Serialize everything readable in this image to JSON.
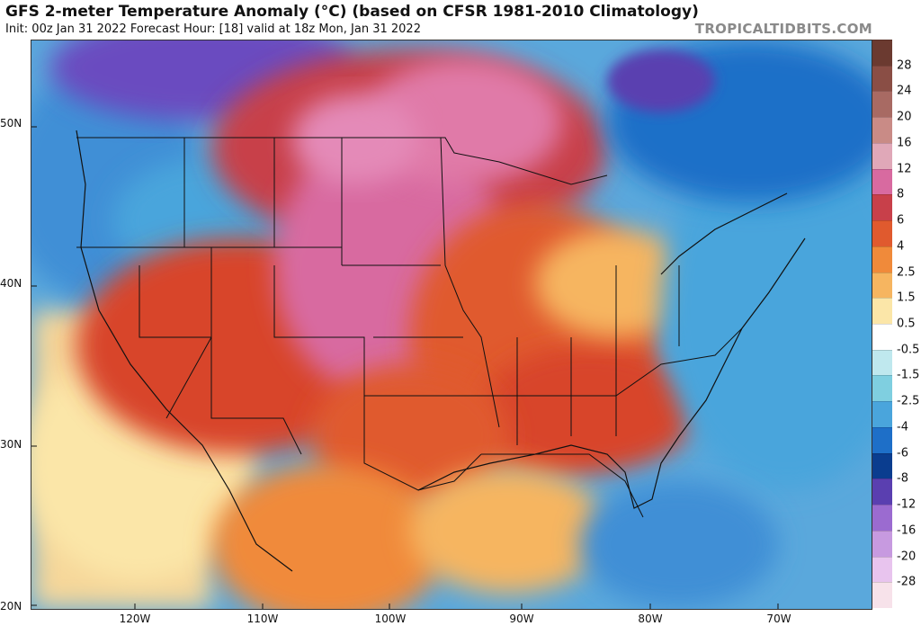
{
  "header": {
    "title": "GFS 2-meter Temperature Anomaly (°C) (based on CFSR 1981-2010 Climatology)",
    "subtitle": "Init: 00z Jan 31 2022   Forecast Hour: [18]   valid at 18z Mon, Jan 31 2022",
    "credit": "TROPICALTIDBITS.COM"
  },
  "axes": {
    "lat_ticks": [
      "50N",
      "40N",
      "30N",
      "20N"
    ],
    "lon_ticks": [
      "120W",
      "110W",
      "100W",
      "90W",
      "80W",
      "70W"
    ]
  },
  "colorbar": {
    "labels": [
      "28",
      "24",
      "20",
      "16",
      "12",
      "8",
      "6",
      "4",
      "2.5",
      "1.5",
      "0.5",
      "-0.5",
      "-1.5",
      "-2.5",
      "-4",
      "-6",
      "-8",
      "-12",
      "-16",
      "-20",
      "-28"
    ],
    "colors": [
      "#6b3a30",
      "#8a4e45",
      "#a86a63",
      "#c98b86",
      "#e0a8b8",
      "#d86aa0",
      "#c8404a",
      "#e05a2e",
      "#f08a3a",
      "#f6b560",
      "#fbe6a8",
      "#ffffff",
      "#bfe8ee",
      "#7fcfe0",
      "#4aa5dc",
      "#1e6fc8",
      "#0a3d8f",
      "#5a3fb0",
      "#9b6bd0",
      "#c79ae0",
      "#e8c4ee",
      "#f7e2ea"
    ]
  },
  "regions": [
    {
      "name": "Western US warm anomaly",
      "color": "#d8442a"
    },
    {
      "name": "Central Plains strong warm anomaly",
      "color": "#d86aa0"
    },
    {
      "name": "Canadian Prairies warm anomaly",
      "color": "#c8404a"
    },
    {
      "name": "Pacific Northwest cold anomaly",
      "color": "#4aa5dc"
    },
    {
      "name": "Eastern Canada cold anomaly",
      "color": "#1e6fc8"
    },
    {
      "name": "Atlantic Ocean cool anomaly",
      "color": "#4aa5dc"
    },
    {
      "name": "Southeast US warm anomaly",
      "color": "#e05a2e"
    },
    {
      "name": "Gulf of Mexico warm anomaly",
      "color": "#f6b560"
    },
    {
      "name": "Mexico mixed anomaly",
      "color": "#f08a3a"
    },
    {
      "name": "Pacific Ocean near-normal",
      "color": "#fbe6a8"
    }
  ]
}
